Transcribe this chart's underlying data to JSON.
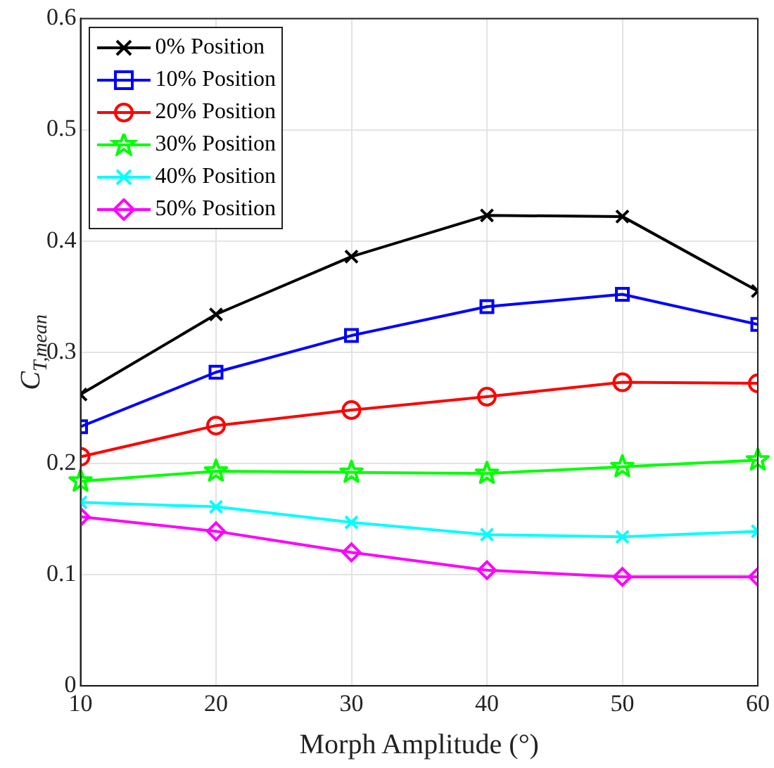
{
  "chart_data": {
    "type": "line",
    "xlabel": "Morph Amplitude (°)",
    "ylabel": "C$_{T,mean}$",
    "x": [
      10,
      20,
      30,
      40,
      50,
      60
    ],
    "xlim": [
      10,
      60
    ],
    "xticks": [
      10,
      20,
      30,
      40,
      50,
      60
    ],
    "ylim": [
      0,
      0.6
    ],
    "yticks": [
      0,
      0.1,
      0.2,
      0.3,
      0.4,
      0.5,
      0.6
    ],
    "grid": true,
    "legend": "top left",
    "line_style": "solid",
    "series": [
      {
        "name": "0% Position",
        "color": "#000000",
        "marker": "cross",
        "values": [
          0.262,
          0.334,
          0.386,
          0.423,
          0.422,
          0.355
        ]
      },
      {
        "name": "10% Position",
        "color": "#0000ff",
        "marker": "square",
        "values": [
          0.233,
          0.282,
          0.315,
          0.341,
          0.352,
          0.325
        ]
      },
      {
        "name": "20% Position",
        "color": "#ff0000",
        "marker": "circle",
        "values": [
          0.206,
          0.234,
          0.248,
          0.26,
          0.273,
          0.272
        ]
      },
      {
        "name": "30% Position",
        "color": "#00ff00",
        "marker": "star",
        "values": [
          0.184,
          0.193,
          0.192,
          0.191,
          0.197,
          0.203
        ]
      },
      {
        "name": "40% Position",
        "color": "#00ffff",
        "marker": "cross",
        "values": [
          0.165,
          0.161,
          0.147,
          0.136,
          0.134,
          0.139
        ]
      },
      {
        "name": "50% Position",
        "color": "#ff00ff",
        "marker": "diamond",
        "values": [
          0.152,
          0.139,
          0.12,
          0.104,
          0.098,
          0.098
        ]
      }
    ]
  }
}
